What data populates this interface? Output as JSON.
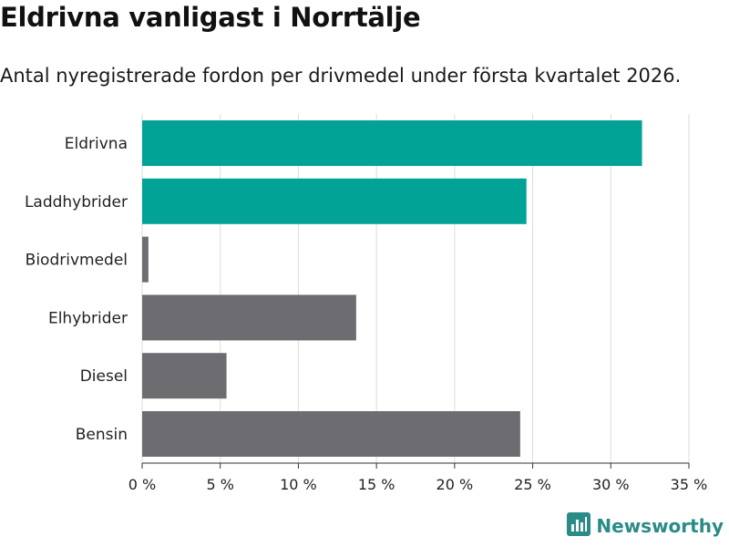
{
  "header": {
    "title": "Eldrivna vanligast i Norrtälje",
    "subtitle": "Antal nyregistrerade fordon per drivmedel under första kvartalet 2026."
  },
  "brand": {
    "name": "Newsworthy",
    "logo_icon": "newsworthy-logo-icon"
  },
  "colors": {
    "highlight": "#00a396",
    "default": "#6d6c71",
    "grid": "#dddddd",
    "axis": "#333333"
  },
  "chart_data": {
    "type": "bar",
    "orientation": "horizontal",
    "title": "Eldrivna vanligast i Norrtälje",
    "subtitle": "Antal nyregistrerade fordon per drivmedel under första kvartalet 2026.",
    "xlabel": "",
    "ylabel": "",
    "xlim": [
      0,
      35
    ],
    "xticks": [
      0,
      5,
      10,
      15,
      20,
      25,
      30,
      35
    ],
    "tick_suffix": " %",
    "grid": true,
    "categories": [
      "Eldrivna",
      "Laddhybrider",
      "Biodrivmedel",
      "Elhybrider",
      "Diesel",
      "Bensin"
    ],
    "values": [
      32.0,
      24.6,
      0.4,
      13.7,
      5.4,
      24.2
    ],
    "highlighted": [
      true,
      true,
      false,
      false,
      false,
      false
    ]
  }
}
